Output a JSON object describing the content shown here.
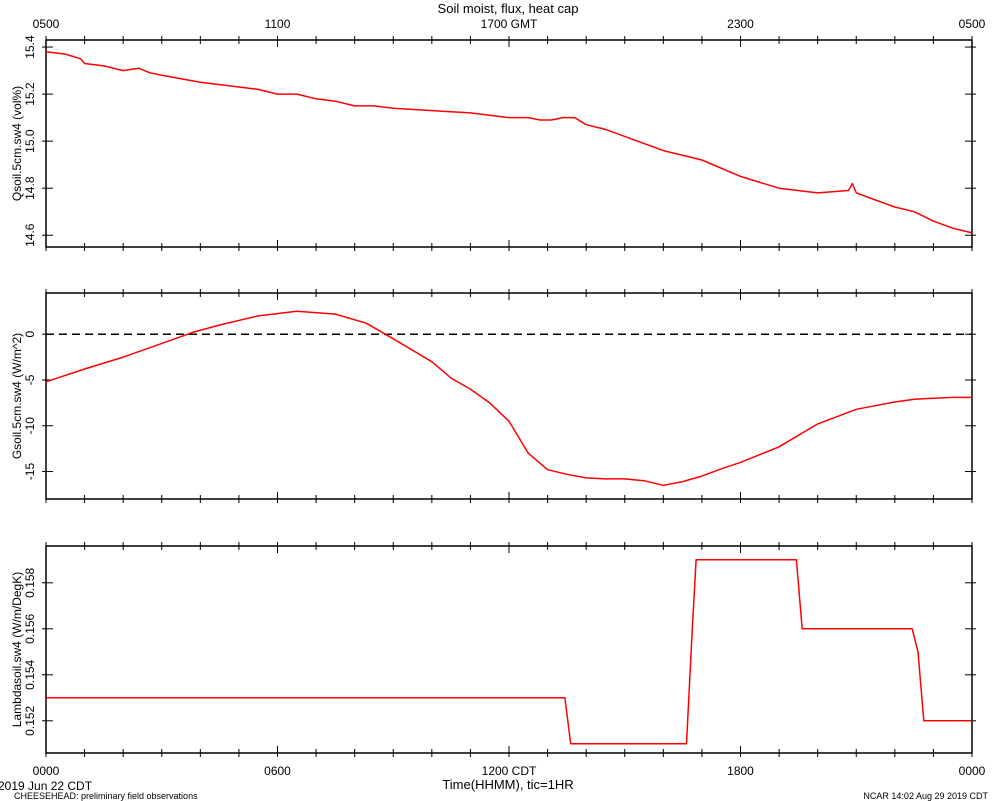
{
  "title": "Soil moist, flux, heat cap",
  "top_axis_label": "GMT",
  "top_axis_ticks": [
    "0500",
    "1100",
    "1700",
    "2300",
    "0500"
  ],
  "bottom_axis_ticks": [
    "0000",
    "0600",
    "1200",
    "1800",
    "0000"
  ],
  "bottom_axis_unit": "CDT",
  "xlabel": "Time(HHMM), tic=1HR",
  "date_label": "2019 Jun 22 CDT",
  "footer_left": "CHEESEHEAD: preliminary field observations",
  "footer_right": "NCAR 14:02 Aug 29 2019 CDT",
  "colors": {
    "series": "#ff0000",
    "axes": "#000000",
    "zero_line": "#000000"
  },
  "chart_data": [
    {
      "type": "line",
      "ylabel": "Qsoil.5cm.sw4 (vol%)",
      "ylim": [
        14.55,
        15.43
      ],
      "yticks": [
        "14.6",
        "14.8",
        "15.0",
        "15.2",
        "15.4"
      ],
      "x_hours_cdt": [
        0,
        0.5,
        0.9,
        1,
        1.5,
        2,
        2.4,
        2.7,
        3,
        4,
        5,
        5.5,
        6,
        6.5,
        7,
        7.5,
        8,
        8.5,
        9,
        10,
        11,
        12,
        12.5,
        12.8,
        13.1,
        13.4,
        13.7,
        14,
        14.5,
        15,
        16,
        17,
        18,
        19,
        20,
        20.8,
        20.9,
        21,
        21.5,
        22,
        22.5,
        23,
        23.5,
        24
      ],
      "y": [
        15.38,
        15.37,
        15.35,
        15.33,
        15.32,
        15.3,
        15.31,
        15.29,
        15.28,
        15.25,
        15.23,
        15.22,
        15.2,
        15.2,
        15.18,
        15.17,
        15.15,
        15.15,
        15.14,
        15.13,
        15.12,
        15.1,
        15.1,
        15.09,
        15.09,
        15.1,
        15.1,
        15.07,
        15.05,
        15.02,
        14.96,
        14.92,
        14.85,
        14.8,
        14.78,
        14.79,
        14.82,
        14.78,
        14.75,
        14.72,
        14.7,
        14.66,
        14.63,
        14.61
      ]
    },
    {
      "type": "line",
      "ylabel": "Gsoil.5cm.sw4 (W/m^2)",
      "ylim": [
        -18,
        4.5
      ],
      "yticks": [
        "-15",
        "-10",
        "-5",
        "0"
      ],
      "reference_line_y": 0,
      "x_hours_cdt": [
        0,
        1,
        2,
        3,
        3.8,
        4.5,
        5.5,
        6.5,
        7.5,
        8.3,
        9,
        10,
        10.5,
        11,
        11.5,
        12,
        12.5,
        13,
        13.5,
        14,
        14.5,
        15,
        15.5,
        16,
        16.5,
        17,
        17.5,
        18,
        19,
        20,
        21,
        22,
        22.5,
        23,
        23.5,
        24
      ],
      "y": [
        -5.2,
        -3.8,
        -2.5,
        -1,
        0.2,
        1.0,
        2.0,
        2.5,
        2.2,
        1.2,
        -0.5,
        -3,
        -4.8,
        -6,
        -7.5,
        -9.5,
        -13,
        -14.8,
        -15.3,
        -15.7,
        -15.8,
        -15.8,
        -16,
        -16.5,
        -16.1,
        -15.5,
        -14.7,
        -14,
        -12.3,
        -9.8,
        -8.2,
        -7.4,
        -7.1,
        -7.0,
        -6.9,
        -6.9
      ]
    },
    {
      "type": "line",
      "ylabel": "Lambdasoil.sw4 (W/m/DegK)",
      "ylim": [
        0.1506,
        0.1596
      ],
      "yticks": [
        "0.152",
        "0.154",
        "0.156",
        "0.158"
      ],
      "x_hours_cdt": [
        0,
        13.45,
        13.6,
        16.6,
        16.75,
        16.85,
        19.45,
        19.6,
        22.45,
        22.6,
        22.75,
        24
      ],
      "y": [
        0.153,
        0.153,
        0.151,
        0.151,
        0.156,
        0.159,
        0.159,
        0.156,
        0.156,
        0.155,
        0.152,
        0.152
      ]
    }
  ]
}
